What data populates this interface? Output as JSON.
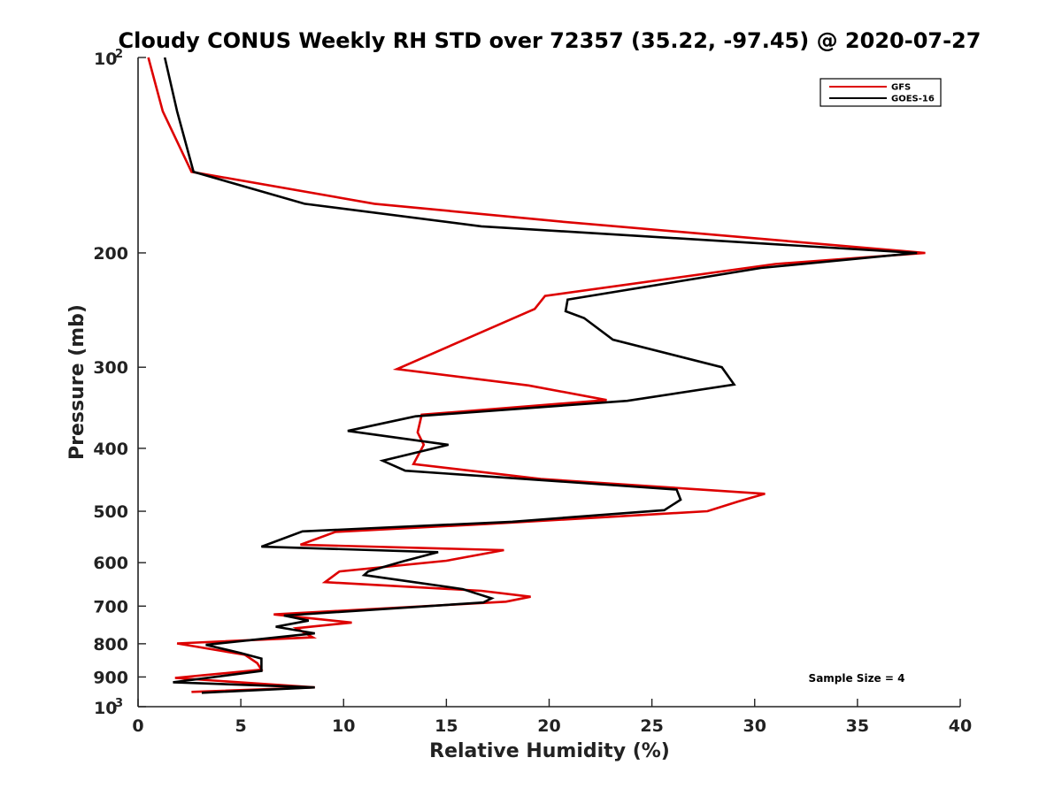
{
  "chart_data": {
    "type": "line",
    "title": "Cloudy CONUS Weekly RH STD over 72357 (35.22, -97.45) @ 2020-07-27",
    "xlabel": "Relative Humidity (%)",
    "ylabel": "Pressure (mb)",
    "xlim": [
      0,
      40
    ],
    "ylim": [
      100,
      1000
    ],
    "yscale": "log",
    "y_reversed": true,
    "x_ticks": [
      0,
      5,
      10,
      15,
      20,
      25,
      30,
      35,
      40
    ],
    "y_ticks": [
      {
        "value": 100,
        "label": "10",
        "sup": "2"
      },
      {
        "value": 200,
        "label": "200"
      },
      {
        "value": 300,
        "label": "300"
      },
      {
        "value": 400,
        "label": "400"
      },
      {
        "value": 500,
        "label": "500"
      },
      {
        "value": 600,
        "label": "600"
      },
      {
        "value": 700,
        "label": "700"
      },
      {
        "value": 800,
        "label": "800"
      },
      {
        "value": 900,
        "label": "900"
      },
      {
        "value": 1000,
        "label": "10",
        "sup": "3"
      }
    ],
    "grid": false,
    "legend_position": "top-right",
    "annotation": "Sample Size = 4",
    "series": [
      {
        "name": "GFS",
        "color": "#dd0000",
        "points": [
          [
            0.5,
            100
          ],
          [
            1.2,
            121
          ],
          [
            2.6,
            150
          ],
          [
            11.5,
            168
          ],
          [
            20.6,
            179
          ],
          [
            38.3,
            200
          ],
          [
            31.0,
            208
          ],
          [
            19.8,
            233
          ],
          [
            19.3,
            244
          ],
          [
            12.6,
            302
          ],
          [
            19.0,
            320
          ],
          [
            22.8,
            337
          ],
          [
            13.8,
            355
          ],
          [
            13.6,
            378
          ],
          [
            13.9,
            395
          ],
          [
            13.4,
            423
          ],
          [
            19.6,
            446
          ],
          [
            30.5,
            470
          ],
          [
            29.2,
            483
          ],
          [
            27.7,
            500
          ],
          [
            17.0,
            523
          ],
          [
            9.6,
            538
          ],
          [
            7.9,
            563
          ],
          [
            17.8,
            574
          ],
          [
            15.0,
            596
          ],
          [
            9.8,
            619
          ],
          [
            9.1,
            643
          ],
          [
            16.7,
            663
          ],
          [
            19.1,
            677
          ],
          [
            17.9,
            689
          ],
          [
            6.6,
            721
          ],
          [
            10.4,
            742
          ],
          [
            7.7,
            757
          ],
          [
            8.5,
            782
          ],
          [
            1.9,
            799
          ],
          [
            5.2,
            832
          ],
          [
            5.8,
            857
          ],
          [
            6.0,
            877
          ],
          [
            1.8,
            903
          ],
          [
            8.6,
            934
          ],
          [
            2.6,
            949
          ]
        ]
      },
      {
        "name": "GOES-16",
        "color": "#000000",
        "points": [
          [
            1.3,
            100
          ],
          [
            1.9,
            121
          ],
          [
            2.7,
            150
          ],
          [
            8.1,
            168
          ],
          [
            16.7,
            182
          ],
          [
            37.9,
            200
          ],
          [
            30.3,
            211
          ],
          [
            20.9,
            236
          ],
          [
            20.8,
            246
          ],
          [
            21.7,
            252
          ],
          [
            23.1,
            272
          ],
          [
            28.4,
            300
          ],
          [
            29.0,
            319
          ],
          [
            23.8,
            338
          ],
          [
            13.5,
            357
          ],
          [
            10.2,
            376
          ],
          [
            15.1,
            395
          ],
          [
            11.9,
            418
          ],
          [
            13.0,
            433
          ],
          [
            26.2,
            463
          ],
          [
            26.4,
            480
          ],
          [
            25.6,
            498
          ],
          [
            18.2,
            519
          ],
          [
            8.0,
            537
          ],
          [
            6.0,
            567
          ],
          [
            14.6,
            578
          ],
          [
            12.9,
            597
          ],
          [
            11.2,
            619
          ],
          [
            11.0,
            627
          ],
          [
            15.8,
            659
          ],
          [
            17.2,
            681
          ],
          [
            16.8,
            691
          ],
          [
            7.1,
            724
          ],
          [
            8.3,
            737
          ],
          [
            6.7,
            753
          ],
          [
            8.6,
            771
          ],
          [
            3.3,
            803
          ],
          [
            5.0,
            827
          ],
          [
            6.0,
            843
          ],
          [
            6.0,
            881
          ],
          [
            1.7,
            917
          ],
          [
            8.6,
            934
          ],
          [
            3.1,
            952
          ]
        ]
      }
    ]
  }
}
